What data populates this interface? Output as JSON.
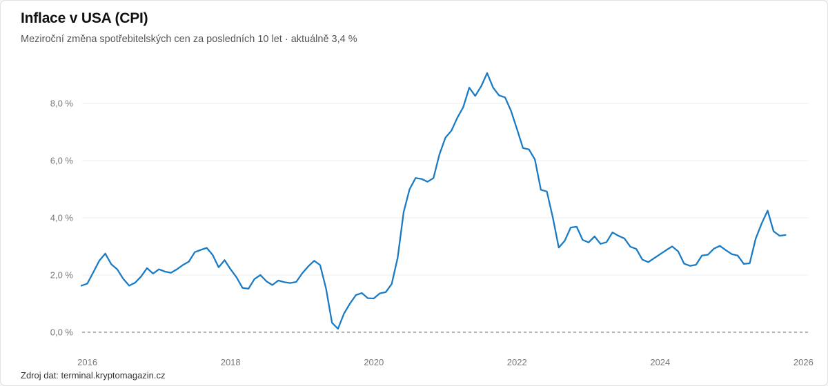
{
  "header": {
    "title": "Inflace v USA (CPI)",
    "subtitle": "Meziroční změna spotřebitelských cen za posledních 10 let · aktuálně 3,4 %"
  },
  "footer": {
    "source": "Zdroj dat: terminal.kryptomagazin.cz"
  },
  "colors": {
    "line": "#1a7bc4",
    "grid": "#ececec",
    "zero_line": "#666666"
  },
  "chart_data": {
    "type": "line",
    "title": "Inflace v USA (CPI)",
    "xlabel": "",
    "ylabel": "",
    "ylim": [
      0,
      9.2
    ],
    "xlim": [
      "2015-12",
      "2026-02"
    ],
    "grid": true,
    "legend": "none",
    "y_ticks": [
      {
        "value": 0,
        "label": "0,0 %"
      },
      {
        "value": 2,
        "label": "2,0 %"
      },
      {
        "value": 4,
        "label": "4,0 %"
      },
      {
        "value": 6,
        "label": "6,0 %"
      },
      {
        "value": 8,
        "label": "8,0 %"
      }
    ],
    "x_ticks": [
      {
        "value": "2016-01",
        "label": "2016"
      },
      {
        "value": "2018-01",
        "label": "2018"
      },
      {
        "value": "2020-01",
        "label": "2020"
      },
      {
        "value": "2022-01",
        "label": "2022"
      },
      {
        "value": "2024-01",
        "label": "2024"
      },
      {
        "value": "2026-01",
        "label": "2026"
      }
    ],
    "series": [
      {
        "data": [
          [
            "2015-12",
            1.63
          ],
          [
            "2016-01",
            1.7
          ],
          [
            "2016-02",
            2.1
          ],
          [
            "2016-03",
            2.5
          ],
          [
            "2016-04",
            2.75
          ],
          [
            "2016-05",
            2.38
          ],
          [
            "2016-06",
            2.2
          ],
          [
            "2016-07",
            1.87
          ],
          [
            "2016-08",
            1.63
          ],
          [
            "2016-09",
            1.73
          ],
          [
            "2016-10",
            1.95
          ],
          [
            "2016-11",
            2.24
          ],
          [
            "2016-12",
            2.05
          ],
          [
            "2017-01",
            2.2
          ],
          [
            "2017-02",
            2.12
          ],
          [
            "2017-03",
            2.08
          ],
          [
            "2017-04",
            2.2
          ],
          [
            "2017-05",
            2.35
          ],
          [
            "2017-06",
            2.47
          ],
          [
            "2017-07",
            2.8
          ],
          [
            "2017-08",
            2.88
          ],
          [
            "2017-09",
            2.95
          ],
          [
            "2017-10",
            2.7
          ],
          [
            "2017-11",
            2.27
          ],
          [
            "2017-12",
            2.52
          ],
          [
            "2018-01",
            2.2
          ],
          [
            "2018-02",
            1.92
          ],
          [
            "2018-03",
            1.55
          ],
          [
            "2018-04",
            1.52
          ],
          [
            "2018-05",
            1.86
          ],
          [
            "2018-06",
            2.0
          ],
          [
            "2018-07",
            1.78
          ],
          [
            "2018-08",
            1.65
          ],
          [
            "2018-09",
            1.81
          ],
          [
            "2018-10",
            1.75
          ],
          [
            "2018-11",
            1.72
          ],
          [
            "2018-12",
            1.76
          ],
          [
            "2019-01",
            2.06
          ],
          [
            "2019-02",
            2.3
          ],
          [
            "2019-03",
            2.5
          ],
          [
            "2019-04",
            2.35
          ],
          [
            "2019-05",
            1.53
          ],
          [
            "2019-06",
            0.33
          ],
          [
            "2019-07",
            0.12
          ],
          [
            "2019-08",
            0.65
          ],
          [
            "2019-09",
            1.0
          ],
          [
            "2019-10",
            1.3
          ],
          [
            "2019-11",
            1.37
          ],
          [
            "2019-12",
            1.19
          ],
          [
            "2020-01",
            1.18
          ],
          [
            "2020-02",
            1.36
          ],
          [
            "2020-03",
            1.4
          ],
          [
            "2020-04",
            1.69
          ],
          [
            "2020-05",
            2.6
          ],
          [
            "2020-06",
            4.2
          ],
          [
            "2020-07",
            5.0
          ],
          [
            "2020-08",
            5.39
          ],
          [
            "2020-09",
            5.36
          ],
          [
            "2020-10",
            5.26
          ],
          [
            "2020-11",
            5.39
          ],
          [
            "2020-12",
            6.22
          ],
          [
            "2021-01",
            6.8
          ],
          [
            "2021-02",
            7.04
          ],
          [
            "2021-03",
            7.5
          ],
          [
            "2021-04",
            7.87
          ],
          [
            "2021-05",
            8.55
          ],
          [
            "2021-06",
            8.26
          ],
          [
            "2021-07",
            8.6
          ],
          [
            "2021-08",
            9.06
          ],
          [
            "2021-09",
            8.55
          ],
          [
            "2021-10",
            8.28
          ],
          [
            "2021-11",
            8.21
          ],
          [
            "2021-12",
            7.74
          ],
          [
            "2022-01",
            7.1
          ],
          [
            "2022-02",
            6.44
          ],
          [
            "2022-03",
            6.39
          ],
          [
            "2022-04",
            6.04
          ],
          [
            "2022-05",
            4.98
          ],
          [
            "2022-06",
            4.92
          ],
          [
            "2022-07",
            4.01
          ],
          [
            "2022-08",
            2.96
          ],
          [
            "2022-09",
            3.2
          ],
          [
            "2022-10",
            3.66
          ],
          [
            "2022-11",
            3.69
          ],
          [
            "2022-12",
            3.23
          ],
          [
            "2023-01",
            3.14
          ],
          [
            "2023-02",
            3.35
          ],
          [
            "2023-03",
            3.09
          ],
          [
            "2023-04",
            3.15
          ],
          [
            "2023-05",
            3.49
          ],
          [
            "2023-06",
            3.37
          ],
          [
            "2023-07",
            3.28
          ],
          [
            "2023-08",
            2.99
          ],
          [
            "2023-09",
            2.91
          ],
          [
            "2023-10",
            2.54
          ],
          [
            "2023-11",
            2.45
          ],
          [
            "2023-12",
            2.59
          ],
          [
            "2024-01",
            2.73
          ],
          [
            "2024-02",
            2.87
          ],
          [
            "2024-03",
            3.0
          ],
          [
            "2024-04",
            2.83
          ],
          [
            "2024-05",
            2.4
          ],
          [
            "2024-06",
            2.32
          ],
          [
            "2024-07",
            2.36
          ],
          [
            "2024-08",
            2.68
          ],
          [
            "2024-09",
            2.71
          ],
          [
            "2024-10",
            2.92
          ],
          [
            "2024-11",
            3.02
          ],
          [
            "2024-12",
            2.87
          ],
          [
            "2025-01",
            2.73
          ],
          [
            "2025-02",
            2.68
          ],
          [
            "2025-03",
            2.39
          ],
          [
            "2025-04",
            2.41
          ],
          [
            "2025-05",
            3.27
          ],
          [
            "2025-06",
            3.8
          ],
          [
            "2025-07",
            4.25
          ],
          [
            "2025-08",
            3.53
          ],
          [
            "2025-09",
            3.37
          ],
          [
            "2025-10",
            3.4
          ]
        ]
      }
    ]
  }
}
